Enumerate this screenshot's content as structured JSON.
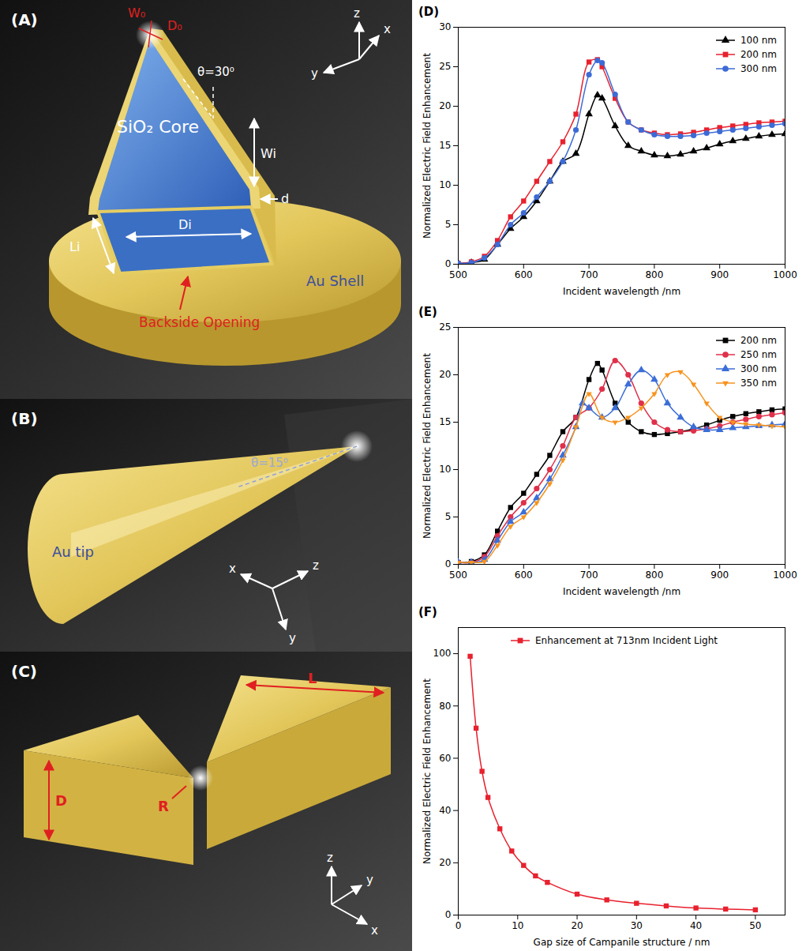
{
  "chart_data": [
    {
      "type": "line",
      "panel": "(D)",
      "x_label": "Incident wavelength /nm",
      "y_label": "Normalized Electric Field Enhancement",
      "xlim": [
        500,
        1000
      ],
      "xticks": [
        500,
        600,
        700,
        800,
        900,
        1000
      ],
      "ylim": [
        0,
        30
      ],
      "yticks": [
        0,
        5,
        10,
        15,
        20,
        25,
        30
      ],
      "legend": "top-right",
      "series": [
        {
          "name": "100 nm",
          "color": "#000000",
          "marker": "triangle",
          "x": [
            500,
            520,
            540,
            560,
            580,
            600,
            620,
            640,
            660,
            680,
            700,
            713,
            720,
            740,
            760,
            780,
            800,
            820,
            840,
            860,
            880,
            900,
            920,
            940,
            960,
            980,
            1000
          ],
          "values": [
            0.1,
            0.2,
            0.6,
            2.5,
            4.5,
            6,
            8,
            10.5,
            13,
            14,
            19,
            21.4,
            21,
            17.5,
            15,
            14.3,
            13.8,
            13.7,
            13.9,
            14.3,
            14.7,
            15.2,
            15.6,
            15.9,
            16.2,
            16.4,
            16.5
          ]
        },
        {
          "name": "200 nm",
          "color": "#e8212e",
          "marker": "square",
          "x": [
            500,
            520,
            540,
            560,
            580,
            600,
            620,
            640,
            660,
            680,
            700,
            713,
            720,
            740,
            760,
            780,
            800,
            820,
            840,
            860,
            880,
            900,
            920,
            940,
            960,
            980,
            1000
          ],
          "values": [
            0.1,
            0.3,
            1,
            3,
            6,
            8,
            10.5,
            13,
            15.5,
            19,
            25.6,
            25.9,
            25,
            21,
            18,
            17,
            16.6,
            16.4,
            16.5,
            16.7,
            17,
            17.3,
            17.5,
            17.7,
            17.9,
            18,
            18.1
          ]
        },
        {
          "name": "300 nm",
          "color": "#3d6bd6",
          "marker": "circle",
          "x": [
            500,
            520,
            540,
            560,
            580,
            600,
            620,
            640,
            660,
            680,
            700,
            713,
            720,
            740,
            760,
            780,
            800,
            820,
            840,
            860,
            880,
            900,
            920,
            940,
            960,
            980,
            1000
          ],
          "values": [
            0.1,
            0.2,
            0.8,
            2.5,
            5,
            6.5,
            8.5,
            10.5,
            13,
            17,
            24,
            25.8,
            25.5,
            21.5,
            18,
            17,
            16.4,
            16.2,
            16.2,
            16.3,
            16.6,
            16.8,
            17,
            17.2,
            17.4,
            17.6,
            17.8
          ]
        }
      ]
    },
    {
      "type": "line",
      "panel": "(E)",
      "x_label": "Incident wavelength /nm",
      "y_label": "Normalized Electric Field Enhancement",
      "xlim": [
        500,
        1000
      ],
      "xticks": [
        500,
        600,
        700,
        800,
        900,
        1000
      ],
      "ylim": [
        0,
        25
      ],
      "yticks": [
        0,
        5,
        10,
        15,
        20,
        25
      ],
      "legend": "top-right",
      "series": [
        {
          "name": "200 nm",
          "color": "#000000",
          "marker": "square",
          "x": [
            500,
            520,
            540,
            560,
            580,
            600,
            620,
            640,
            660,
            680,
            700,
            713,
            720,
            740,
            760,
            780,
            800,
            820,
            840,
            860,
            880,
            900,
            920,
            940,
            960,
            980,
            1000
          ],
          "values": [
            0.2,
            0.3,
            1,
            3.5,
            6,
            7.5,
            9.5,
            11.5,
            14,
            15.5,
            19.5,
            21.2,
            20.5,
            17,
            15,
            14,
            13.7,
            13.8,
            14,
            14.3,
            14.7,
            15.2,
            15.6,
            15.9,
            16.1,
            16.3,
            16.4
          ]
        },
        {
          "name": "250 nm",
          "color": "#e0304a",
          "marker": "circle",
          "x": [
            500,
            520,
            540,
            560,
            580,
            600,
            620,
            640,
            660,
            680,
            700,
            720,
            740,
            760,
            780,
            800,
            820,
            840,
            860,
            880,
            900,
            920,
            940,
            960,
            980,
            1000
          ],
          "values": [
            0.2,
            0.2,
            0.8,
            3,
            5,
            6.5,
            8,
            10,
            12.5,
            15.5,
            16.5,
            18.5,
            21.5,
            20,
            17,
            15,
            14.2,
            14,
            14.1,
            14.3,
            14.6,
            15,
            15.3,
            15.6,
            15.8,
            16
          ]
        },
        {
          "name": "300 nm",
          "color": "#3b6ed8",
          "marker": "triangle",
          "x": [
            500,
            520,
            540,
            560,
            580,
            600,
            620,
            640,
            660,
            680,
            690,
            700,
            720,
            740,
            760,
            780,
            800,
            820,
            840,
            860,
            880,
            900,
            920,
            940,
            960,
            980,
            1000
          ],
          "values": [
            0.2,
            0.2,
            0.5,
            2.5,
            4.5,
            5.5,
            7,
            9,
            11.5,
            14.5,
            17,
            16.5,
            15.5,
            16.5,
            19,
            20.5,
            19.5,
            17,
            15.5,
            14.5,
            14.2,
            14.2,
            14.4,
            14.5,
            14.6,
            14.7,
            14.8
          ]
        },
        {
          "name": "350 nm",
          "color": "#f7931e",
          "marker": "triangle-down",
          "x": [
            500,
            520,
            540,
            560,
            580,
            600,
            620,
            640,
            660,
            680,
            700,
            720,
            740,
            760,
            780,
            800,
            820,
            840,
            860,
            880,
            900,
            920,
            940,
            960,
            980,
            1000
          ],
          "values": [
            0.2,
            0.2,
            0.3,
            2,
            4,
            5,
            6.5,
            8.5,
            11,
            14.5,
            18,
            15.5,
            15,
            15.5,
            16.5,
            18,
            20,
            20.3,
            19,
            17,
            15.5,
            15,
            14.8,
            14.7,
            14.6,
            14.5
          ]
        }
      ]
    },
    {
      "type": "line",
      "panel": "(F)",
      "x_label": "Gap size of Campanile structure / nm",
      "y_label": "Normalized Electric Field Enhancement",
      "xlim": [
        0,
        55
      ],
      "xticks": [
        0,
        10,
        20,
        30,
        40,
        50
      ],
      "ylim": [
        0,
        110
      ],
      "yticks": [
        0,
        20,
        40,
        60,
        80,
        100
      ],
      "legend": "top",
      "series": [
        {
          "name": "Enhancement at 713nm Incident Light",
          "color": "#e8212e",
          "marker": "square",
          "x": [
            2,
            3,
            4,
            5,
            7,
            9,
            11,
            13,
            15,
            20,
            25,
            30,
            35,
            40,
            45,
            50
          ],
          "values": [
            99,
            71.5,
            55,
            45,
            33,
            24.5,
            19,
            15,
            12.5,
            8,
            5.8,
            4.5,
            3.5,
            2.7,
            2.3,
            2
          ]
        }
      ]
    }
  ],
  "diagrams": [
    {
      "panel": "(A)",
      "labels": {
        "w0": "W₀",
        "d0": "D₀",
        "theta": "θ=30⁰",
        "core": "SiO₂ Core",
        "wi": "Wi",
        "li": "Li",
        "di": "Di",
        "d": "d",
        "shell": "Au Shell",
        "opening": "Backside Opening"
      },
      "axes": [
        "z",
        "x",
        "y"
      ]
    },
    {
      "panel": "(B)",
      "labels": {
        "theta": "θ=15⁰",
        "tip": "Au tip"
      },
      "axes": [
        "x",
        "z",
        "y"
      ]
    },
    {
      "panel": "(C)",
      "labels": {
        "l": "L",
        "r": "R",
        "d": "D"
      },
      "axes": [
        "z",
        "y",
        "x"
      ]
    }
  ]
}
